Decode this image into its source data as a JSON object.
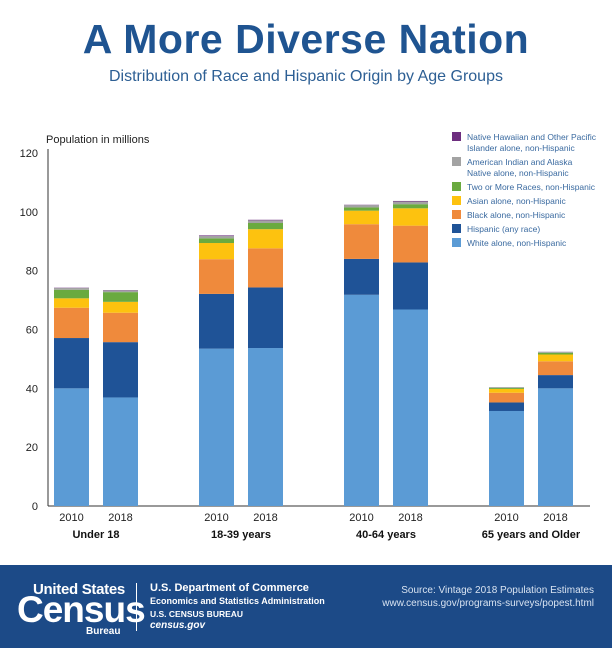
{
  "header": {
    "title": "A More Diverse Nation",
    "subtitle": "Distribution of Race and Hispanic Origin by Age Groups"
  },
  "chart_data": {
    "type": "bar",
    "stacked": true,
    "ylabel": "Population in millions",
    "ylim": [
      0,
      120
    ],
    "yticks": [
      0,
      20,
      40,
      60,
      80,
      100,
      120
    ],
    "grid": false,
    "legend_position": "top-right",
    "groups": [
      {
        "label": "Under 18",
        "bars": [
          "2010",
          "2018"
        ]
      },
      {
        "label": "18-39 years",
        "bars": [
          "2010",
          "2018"
        ]
      },
      {
        "label": "40-64 years",
        "bars": [
          "2010",
          "2018"
        ]
      },
      {
        "label": "65 years and Older",
        "bars": [
          "2010",
          "2018"
        ]
      }
    ],
    "series": [
      {
        "name": "White alone, non-Hispanic",
        "color": "#5b9bd5",
        "values": [
          40.0,
          36.9,
          53.5,
          53.7,
          71.8,
          66.8,
          32.3,
          40.0
        ]
      },
      {
        "name": "Hispanic (any race)",
        "color": "#1f5397",
        "values": [
          17.1,
          18.8,
          18.6,
          20.6,
          12.2,
          16.0,
          2.9,
          4.5
        ]
      },
      {
        "name": "Black alone, non-Hispanic",
        "color": "#ef8a3c",
        "values": [
          10.3,
          10.0,
          11.8,
          13.3,
          11.8,
          12.5,
          3.3,
          4.7
        ]
      },
      {
        "name": "Asian alone, non-Hispanic",
        "color": "#fdc20f",
        "values": [
          3.2,
          3.7,
          5.5,
          6.5,
          4.6,
          5.9,
          1.3,
          2.3
        ]
      },
      {
        "name": "Two or More Races, non-Hispanic",
        "color": "#6aaa3f",
        "values": [
          2.9,
          3.3,
          1.6,
          2.1,
          1.1,
          1.4,
          0.4,
          0.6
        ]
      },
      {
        "name": "American Indian and Alaska Native alone, non-Hispanic",
        "color": "#a3a3a3",
        "values": [
          0.6,
          0.6,
          0.8,
          0.9,
          0.8,
          0.9,
          0.2,
          0.3
        ]
      },
      {
        "name": "Native Hawaiian and Other Pacific Islander alone, non-Hispanic",
        "color": "#6d2e7f",
        "values": [
          0.1,
          0.1,
          0.2,
          0.2,
          0.1,
          0.2,
          0.03,
          0.04
        ]
      }
    ],
    "legend": [
      {
        "text": [
          "Native Hawaiian and Other Pacific",
          "Islander alone, non-Hispanic"
        ],
        "color": "#6d2e7f"
      },
      {
        "text": [
          "American Indian and Alaska",
          "Native alone, non-Hispanic"
        ],
        "color": "#a3a3a3"
      },
      {
        "text": [
          "Two or More Races, non-Hispanic"
        ],
        "color": "#6aaa3f"
      },
      {
        "text": [
          "Asian alone, non-Hispanic"
        ],
        "color": "#fdc20f"
      },
      {
        "text": [
          "Black alone, non-Hispanic"
        ],
        "color": "#ef8a3c"
      },
      {
        "text": [
          "Hispanic (any race)"
        ],
        "color": "#1f5397"
      },
      {
        "text": [
          "White alone, non-Hispanic"
        ],
        "color": "#5b9bd5"
      }
    ]
  },
  "footer": {
    "logo_top": "United States",
    "logo_main": "Census",
    "logo_sub": "Bureau",
    "dept": "U.S. Department of Commerce",
    "admin": "Economics and Statistics Administration",
    "bureau": "U.S. CENSUS BUREAU",
    "site": "census.gov",
    "source": "Source: Vintage 2018 Population Estimates",
    "source_url": "www.census.gov/programs-surveys/popest.html"
  }
}
